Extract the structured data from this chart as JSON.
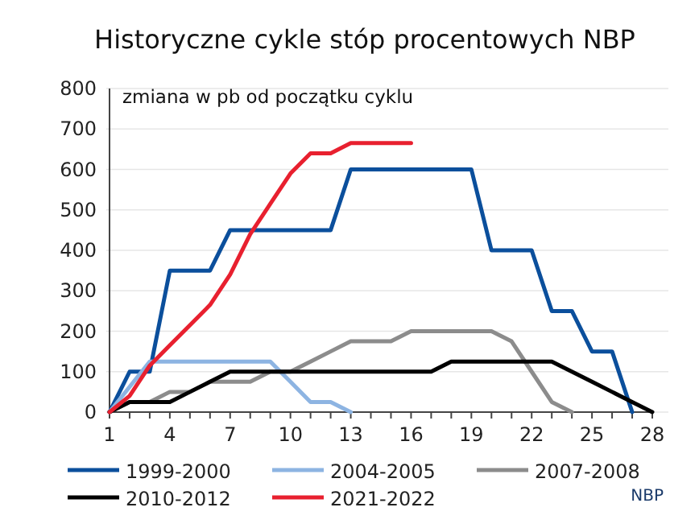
{
  "chart_data": {
    "type": "line",
    "title": "Historyczne cykle stóp procentowych NBP",
    "subtitle": "zmiana w pb od początku cyklu",
    "annotations": [
      "NBP"
    ],
    "xlim": [
      1,
      28
    ],
    "xticks": [
      1,
      {
        "value": 2,
        "label": null
      },
      {
        "value": 3,
        "label": null
      },
      4,
      {
        "value": 5,
        "label": null
      },
      {
        "value": 6,
        "label": null
      },
      7,
      {
        "value": 8,
        "label": null
      },
      {
        "value": 9,
        "label": null
      },
      10,
      {
        "value": 11,
        "label": null
      },
      {
        "value": 12,
        "label": null
      },
      13,
      {
        "value": 14,
        "label": null
      },
      {
        "value": 15,
        "label": null
      },
      16,
      {
        "value": 17,
        "label": null
      },
      {
        "value": 18,
        "label": null
      },
      19,
      {
        "value": 20,
        "label": null
      },
      {
        "value": 21,
        "label": null
      },
      22,
      {
        "value": 23,
        "label": null
      },
      {
        "value": 24,
        "label": null
      },
      25,
      {
        "value": 26,
        "label": null
      },
      {
        "value": 27,
        "label": null
      },
      28
    ],
    "ylim": [
      0,
      800
    ],
    "yticks": [
      0,
      100,
      200,
      300,
      400,
      500,
      600,
      700,
      800
    ],
    "grid": "y",
    "legend": "bottom",
    "marker": "none",
    "line_style": "solid",
    "series": [
      {
        "name": "1999-2000",
        "color": "#0b4f9c",
        "x": [
          1,
          2,
          3,
          4,
          5,
          6,
          7,
          8,
          9,
          10,
          11,
          12,
          13,
          14,
          15,
          16,
          17,
          18,
          19,
          20,
          21,
          22,
          23,
          24,
          25,
          26,
          27
        ],
        "values": [
          0,
          100,
          100,
          350,
          350,
          350,
          450,
          450,
          450,
          450,
          450,
          450,
          600,
          600,
          600,
          600,
          600,
          600,
          600,
          400,
          400,
          400,
          250,
          250,
          150,
          150,
          0
        ]
      },
      {
        "name": "2004-2005",
        "color": "#8db4e2",
        "x": [
          1,
          3,
          4,
          5,
          6,
          7,
          8,
          9,
          10,
          11,
          12,
          13
        ],
        "values": [
          0,
          125,
          125,
          125,
          125,
          125,
          125,
          125,
          75,
          25,
          25,
          0
        ]
      },
      {
        "name": "2007-2008",
        "color": "#8c8c8c",
        "x": [
          1,
          2,
          3,
          4,
          5,
          6,
          7,
          8,
          9,
          10,
          11,
          12,
          13,
          14,
          15,
          16,
          17,
          18,
          19,
          20,
          21,
          22,
          23,
          24
        ],
        "values": [
          0,
          25,
          25,
          50,
          50,
          75,
          75,
          75,
          100,
          100,
          125,
          150,
          175,
          175,
          175,
          200,
          200,
          200,
          200,
          200,
          175,
          100,
          25,
          0
        ]
      },
      {
        "name": "2010-2012",
        "color": "#000000",
        "x": [
          1,
          2,
          3,
          4,
          5,
          6,
          7,
          8,
          9,
          10,
          11,
          12,
          13,
          14,
          15,
          16,
          17,
          18,
          19,
          20,
          21,
          22,
          23,
          24,
          25,
          26,
          27,
          28
        ],
        "values": [
          0,
          25,
          25,
          25,
          50,
          75,
          100,
          100,
          100,
          100,
          100,
          100,
          100,
          100,
          100,
          100,
          100,
          125,
          125,
          125,
          125,
          125,
          125,
          100,
          75,
          50,
          25,
          0
        ]
      },
      {
        "name": "2021-2022",
        "color": "#e8202f",
        "x": [
          1,
          2,
          3,
          4,
          5,
          6,
          7,
          8,
          9,
          10,
          11,
          12,
          13,
          14,
          15,
          16
        ],
        "values": [
          0,
          40,
          115,
          165,
          215,
          265,
          340,
          440,
          515,
          590,
          640,
          640,
          665,
          665,
          665,
          665
        ]
      }
    ]
  }
}
